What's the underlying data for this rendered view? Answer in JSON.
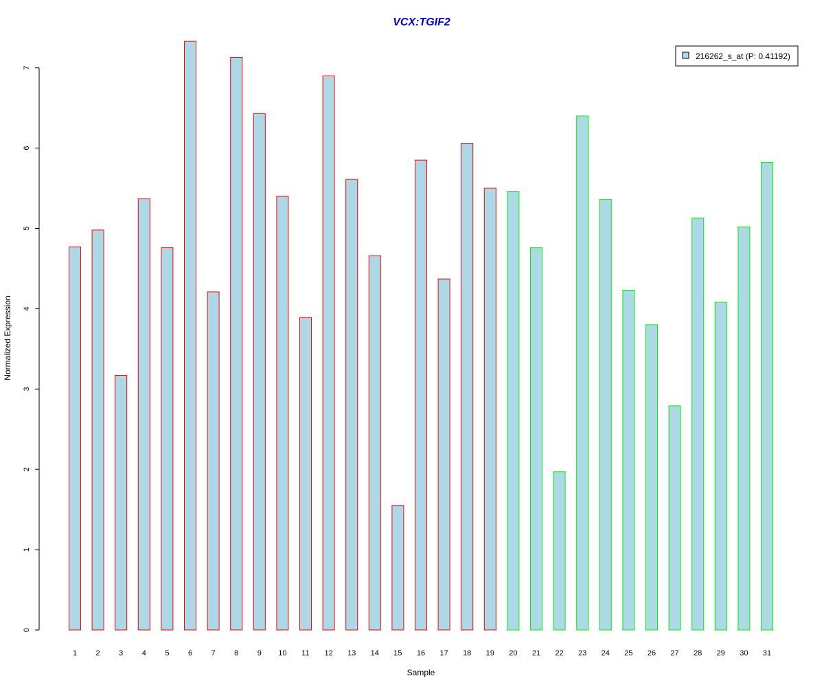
{
  "chart_data": {
    "type": "bar",
    "title": "VCX:TGIF2",
    "xlabel": "Sample",
    "ylabel": "Normalized Expression",
    "categories": [
      "1",
      "2",
      "3",
      "4",
      "5",
      "6",
      "7",
      "8",
      "9",
      "10",
      "11",
      "12",
      "13",
      "14",
      "15",
      "16",
      "17",
      "18",
      "19",
      "20",
      "21",
      "22",
      "23",
      "24",
      "25",
      "26",
      "27",
      "28",
      "29",
      "30",
      "31"
    ],
    "series": [
      {
        "name": "216262_s_at (P: 0.41192)",
        "values": [
          4.77,
          4.98,
          3.17,
          5.37,
          4.76,
          7.33,
          4.21,
          7.13,
          6.43,
          5.4,
          3.89,
          6.9,
          5.61,
          4.66,
          1.55,
          5.85,
          4.37,
          6.06,
          5.5,
          5.46,
          4.76,
          1.97,
          6.4,
          5.36,
          4.23,
          3.8,
          2.79,
          5.13,
          4.08,
          5.02,
          5.82
        ]
      }
    ],
    "groups": [
      {
        "from": 1,
        "to": 19,
        "border_color": "#ff0000"
      },
      {
        "from": 20,
        "to": 31,
        "border_color": "#00ee00"
      }
    ],
    "fill_color": "#add8e6",
    "title_color": "#0000cc",
    "yticks": [
      0,
      1,
      2,
      3,
      4,
      5,
      6,
      7
    ],
    "ylim": [
      0,
      7.33
    ],
    "grid": false,
    "legend_position": "top-right"
  }
}
